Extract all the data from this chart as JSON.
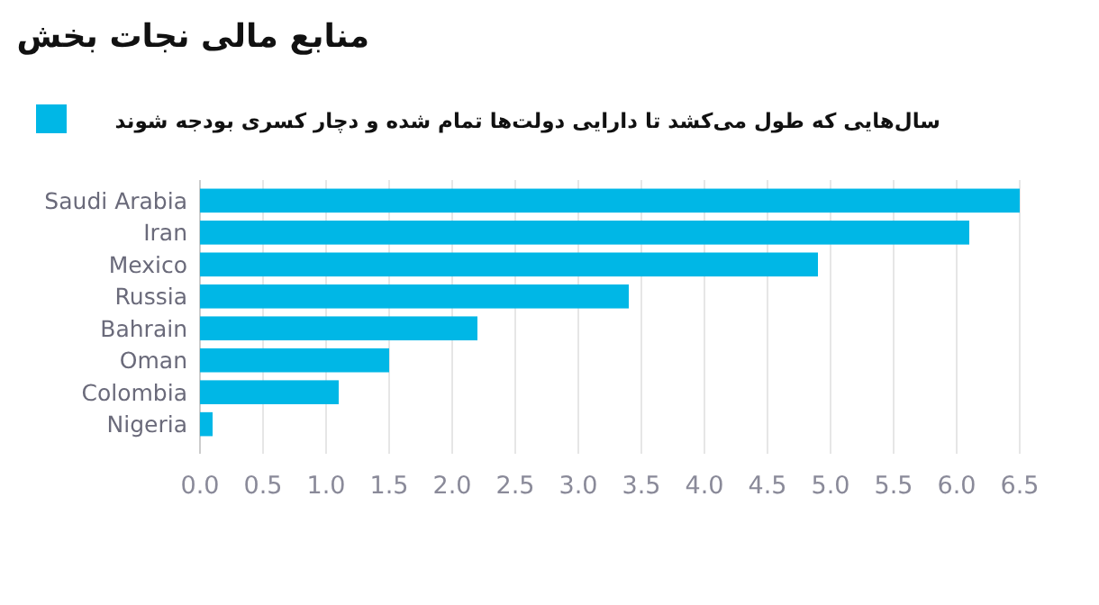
{
  "chart_data": {
    "type": "bar",
    "orientation": "horizontal",
    "title": "منابع مالی نجات بخش",
    "categories": [
      "Saudi Arabia",
      "Iran",
      "Mexico",
      "Russia",
      "Bahrain",
      "Oman",
      "Colombia",
      "Nigeria"
    ],
    "series": [
      {
        "name": "سال‌هایی که طول می‌کشد تا  دارایی دولت‌ها تمام شده و دچار کسری بودجه شوند",
        "color": "#00b7e6",
        "values": [
          6.5,
          6.1,
          4.9,
          3.4,
          2.2,
          1.5,
          1.1,
          0.1
        ]
      }
    ],
    "xlim": [
      0,
      6.5
    ],
    "xticks": [
      {
        "value": 0,
        "label": "0.0"
      },
      {
        "value": 0.5,
        "label": "0.5"
      },
      {
        "value": 1,
        "label": "1.0"
      },
      {
        "value": 1.5,
        "label": "1.5"
      },
      {
        "value": 2,
        "label": "2.0"
      },
      {
        "value": 2.5,
        "label": "2.5"
      },
      {
        "value": 3,
        "label": "3.0"
      },
      {
        "value": 3.5,
        "label": "3.5"
      },
      {
        "value": 4,
        "label": "4.0"
      },
      {
        "value": 4.5,
        "label": "4.5"
      },
      {
        "value": 5,
        "label": "5.0"
      },
      {
        "value": 5.5,
        "label": "5.5"
      },
      {
        "value": 6,
        "label": "6.0"
      },
      {
        "value": 6.5,
        "label": "6.5"
      }
    ],
    "grid": "x",
    "legend": "top left"
  }
}
